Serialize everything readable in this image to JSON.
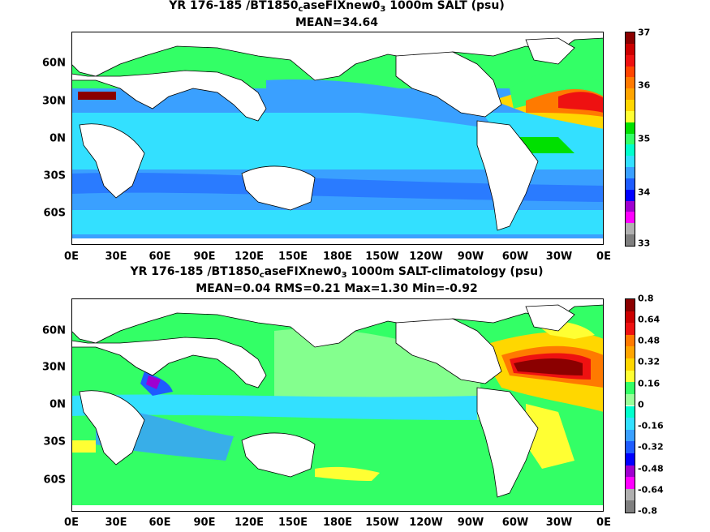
{
  "panel1": {
    "title_pre": "YR 176-185 /BT1850",
    "title_sub1": "c",
    "title_mid": "aseFIXnew0",
    "title_sub2": "3",
    "title_post": " 1000m SALT (psu)",
    "subtitle": "MEAN=34.64",
    "colorbar_labels": [
      "37",
      "36",
      "35",
      "34",
      "33"
    ],
    "colors": [
      "#7f7f7f",
      "#b0b0b0",
      "#ff00ff",
      "#a000d0",
      "#0000ff",
      "#1e5cff",
      "#3aa0ff",
      "#33e0ff",
      "#00ffcc",
      "#33ff66",
      "#00e000",
      "#ffff33",
      "#ffd700",
      "#ffa500",
      "#ff7a00",
      "#ff4500",
      "#ee1111",
      "#cc0000",
      "#8b0000"
    ]
  },
  "panel2": {
    "title_pre": "YR 176-185 /BT1850",
    "title_sub1": "c",
    "title_mid": "aseFIXnew0",
    "title_sub2": "3",
    "title_post": " 1000m SALT-climatology (psu)",
    "subtitle": "MEAN=0.04   RMS=0.21   Max=1.30   Min=-0.92",
    "colorbar_labels": [
      "0.8",
      "0.64",
      "0.48",
      "0.32",
      "0.16",
      "0",
      "-0.16",
      "-0.32",
      "-0.48",
      "-0.64",
      "-0.8"
    ],
    "colors": [
      "#7f7f7f",
      "#b0b0b0",
      "#ff00ff",
      "#a000d0",
      "#0000ff",
      "#1e5cff",
      "#3aa0ff",
      "#33e0ff",
      "#00ffcc",
      "#99ff99",
      "#33ff66",
      "#ffff33",
      "#ffd700",
      "#ffa500",
      "#ff7a00",
      "#ee1111",
      "#cc0000",
      "#8b0000"
    ]
  },
  "x_labels": [
    "0E",
    "30E",
    "60E",
    "90E",
    "120E",
    "150E",
    "180E",
    "150W",
    "120W",
    "90W",
    "60W",
    "30W",
    "0E"
  ],
  "y_labels": [
    "60N",
    "30N",
    "0N",
    "30S",
    "60S"
  ]
}
